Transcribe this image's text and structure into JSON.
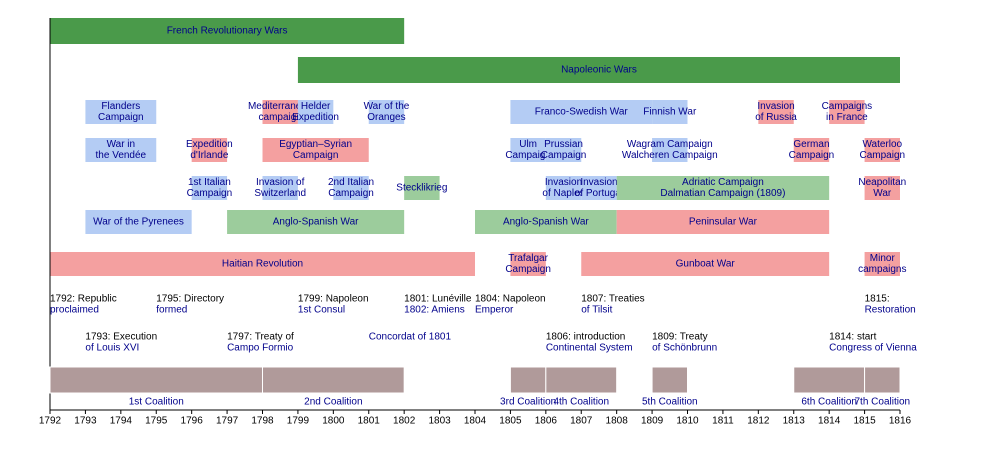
{
  "chart_data": {
    "type": "timeline",
    "xlim": [
      1792,
      1816
    ],
    "xticks": [
      1792,
      1793,
      1794,
      1795,
      1796,
      1797,
      1798,
      1799,
      1800,
      1801,
      1802,
      1803,
      1804,
      1805,
      1806,
      1807,
      1808,
      1809,
      1810,
      1811,
      1812,
      1813,
      1814,
      1815,
      1816
    ],
    "rows": [
      {
        "bars": [
          {
            "label": [
              "French Revolutionary Wars"
            ],
            "start": 1792,
            "end": 1802,
            "color": "#4a9a4a"
          }
        ]
      },
      {
        "bars": [
          {
            "label": [
              "Napoleonic Wars"
            ],
            "start": 1799,
            "end": 1816,
            "color": "#4a9a4a"
          }
        ]
      },
      {
        "bars": [
          {
            "label": [
              "Flanders",
              "Campaign"
            ],
            "start": 1793,
            "end": 1795,
            "color": "#b4ccf4"
          },
          {
            "label": [
              "Mediterranean",
              "campaign"
            ],
            "start": 1798,
            "end": 1799,
            "color": "#f4a0a0"
          },
          {
            "label": [
              "Helder",
              "Expedition"
            ],
            "start": 1799,
            "end": 1800,
            "color": "#b4ccf4"
          },
          {
            "label": [
              "War of the",
              "Oranges"
            ],
            "start": 1801,
            "end": 1802,
            "color": "#b4ccf4"
          },
          {
            "label": [
              "Franco-Swedish War"
            ],
            "start": 1805,
            "end": 1809,
            "color": "#b4ccf4"
          },
          {
            "label": [
              "Finnish War"
            ],
            "start": 1809,
            "end": 1810,
            "color": "#b4ccf4"
          },
          {
            "label": [
              "Invasion",
              "of Russia"
            ],
            "start": 1812,
            "end": 1813,
            "color": "#f4a0a0"
          },
          {
            "label": [
              "Campaigns",
              "in France"
            ],
            "start": 1814,
            "end": 1815,
            "color": "#f4a0a0"
          }
        ]
      },
      {
        "bars": [
          {
            "label": [
              "War in",
              "the Vendée"
            ],
            "start": 1793,
            "end": 1795,
            "color": "#b4ccf4"
          },
          {
            "label": [
              "Expedition",
              "d'Irlande"
            ],
            "start": 1796,
            "end": 1797,
            "color": "#f4a0a0"
          },
          {
            "label": [
              "Egyptian–Syrian",
              "Campaign"
            ],
            "start": 1798,
            "end": 1801,
            "color": "#f4a0a0"
          },
          {
            "label": [
              "Ulm",
              "Campaign"
            ],
            "start": 1805,
            "end": 1806,
            "color": "#b4ccf4"
          },
          {
            "label": [
              "Prussian",
              "Campaign"
            ],
            "start": 1806,
            "end": 1807,
            "color": "#b4ccf4"
          },
          {
            "label": [
              "Wagram Campaign",
              "Walcheren Campaign"
            ],
            "start": 1809,
            "end": 1810,
            "color": "#b4ccf4"
          },
          {
            "label": [
              "German",
              "Campaign"
            ],
            "start": 1813,
            "end": 1814,
            "color": "#f4a0a0"
          },
          {
            "label": [
              "Waterloo",
              "Campaign"
            ],
            "start": 1815,
            "end": 1816,
            "color": "#f4a0a0"
          }
        ]
      },
      {
        "bars": [
          {
            "label": [
              "1st Italian",
              "Campaign"
            ],
            "start": 1796,
            "end": 1797,
            "color": "#b4ccf4"
          },
          {
            "label": [
              "Invasion of",
              "Switzerland"
            ],
            "start": 1798,
            "end": 1799,
            "color": "#b4ccf4"
          },
          {
            "label": [
              "2nd Italian",
              "Campaign"
            ],
            "start": 1800,
            "end": 1801,
            "color": "#b4ccf4"
          },
          {
            "label": [
              "Stecklikrieg"
            ],
            "start": 1802,
            "end": 1803,
            "color": "#9ccc9c"
          },
          {
            "label": [
              "Invasion",
              "of Naples"
            ],
            "start": 1806,
            "end": 1807,
            "color": "#b4ccf4"
          },
          {
            "label": [
              "Invasion",
              "of Portugal"
            ],
            "start": 1807,
            "end": 1808,
            "color": "#b4ccf4"
          },
          {
            "label": [
              "Adriatic Campaign",
              "Dalmatian Campaign (1809)"
            ],
            "start": 1808,
            "end": 1814,
            "color": "#9ccc9c"
          },
          {
            "label": [
              "Neapolitan",
              "War"
            ],
            "start": 1815,
            "end": 1816,
            "color": "#f4a0a0"
          }
        ]
      },
      {
        "bars": [
          {
            "label": [
              "War of the Pyrenees"
            ],
            "start": 1793,
            "end": 1796,
            "color": "#b4ccf4"
          },
          {
            "label": [
              "Anglo-Spanish War"
            ],
            "start": 1797,
            "end": 1802,
            "color": "#9ccc9c"
          },
          {
            "label": [
              "Anglo-Spanish War"
            ],
            "start": 1804,
            "end": 1808,
            "color": "#9ccc9c"
          },
          {
            "label": [
              "Peninsular War"
            ],
            "start": 1808,
            "end": 1814,
            "color": "#f4a0a0"
          }
        ]
      },
      {
        "bars": [
          {
            "label": [
              "Haitian Revolution"
            ],
            "start": 1792,
            "end": 1804,
            "color": "#f4a0a0"
          },
          {
            "label": [
              "Trafalgar",
              "Campaign"
            ],
            "start": 1805,
            "end": 1806,
            "color": "#f4a0a0"
          },
          {
            "label": [
              "Gunboat War"
            ],
            "start": 1807,
            "end": 1814,
            "color": "#f4a0a0"
          },
          {
            "label": [
              "Minor",
              "campaigns"
            ],
            "start": 1815,
            "end": 1816,
            "color": "#f4a0a0"
          }
        ]
      }
    ],
    "event_rows": [
      {
        "events": [
          {
            "year": 1792,
            "lines": [
              "1792: Republic",
              "proclaimed"
            ]
          },
          {
            "year": 1795,
            "lines": [
              "1795: Directory",
              "formed"
            ]
          },
          {
            "year": 1799,
            "lines": [
              "1799: Napoleon",
              "1st Consul"
            ]
          },
          {
            "year": 1802,
            "lines": [
              "1801: Lunéville",
              "1802: Amiens"
            ]
          },
          {
            "year": 1804,
            "lines": [
              "1804: Napoleon",
              "Emperor"
            ]
          },
          {
            "year": 1807,
            "lines": [
              "1807: Treaties",
              "of Tilsit"
            ]
          },
          {
            "year": 1815,
            "lines": [
              "1815:",
              "Restoration"
            ]
          }
        ]
      },
      {
        "events": [
          {
            "year": 1793,
            "lines": [
              "1793: Execution",
              "of Louis XVI"
            ]
          },
          {
            "year": 1797,
            "lines": [
              "1797: Treaty of",
              "Campo Formio"
            ]
          },
          {
            "year": 1801,
            "lines": [
              "Concordat of 1801"
            ]
          },
          {
            "year": 1806,
            "lines": [
              "1806: introduction",
              "Continental System"
            ]
          },
          {
            "year": 1809,
            "lines": [
              "1809: Treaty",
              "of Schönbrunn"
            ]
          },
          {
            "year": 1814,
            "lines": [
              "1814: start",
              "Congress of Vienna"
            ]
          }
        ]
      }
    ],
    "coalition_color": "#b09a9a",
    "coalitions": [
      {
        "label": "1st Coalition",
        "start": 1792,
        "end": 1798
      },
      {
        "label": "2nd Coalition",
        "start": 1798,
        "end": 1802
      },
      {
        "label": "3rd Coalition",
        "start": 1805,
        "end": 1806
      },
      {
        "label": "4th Coalition",
        "start": 1806,
        "end": 1808
      },
      {
        "label": "5th Coalition",
        "start": 1809,
        "end": 1810
      },
      {
        "label": "6th Coalition",
        "start": 1813,
        "end": 1815
      },
      {
        "label": "7th Coalition",
        "start": 1815,
        "end": 1816
      }
    ]
  }
}
